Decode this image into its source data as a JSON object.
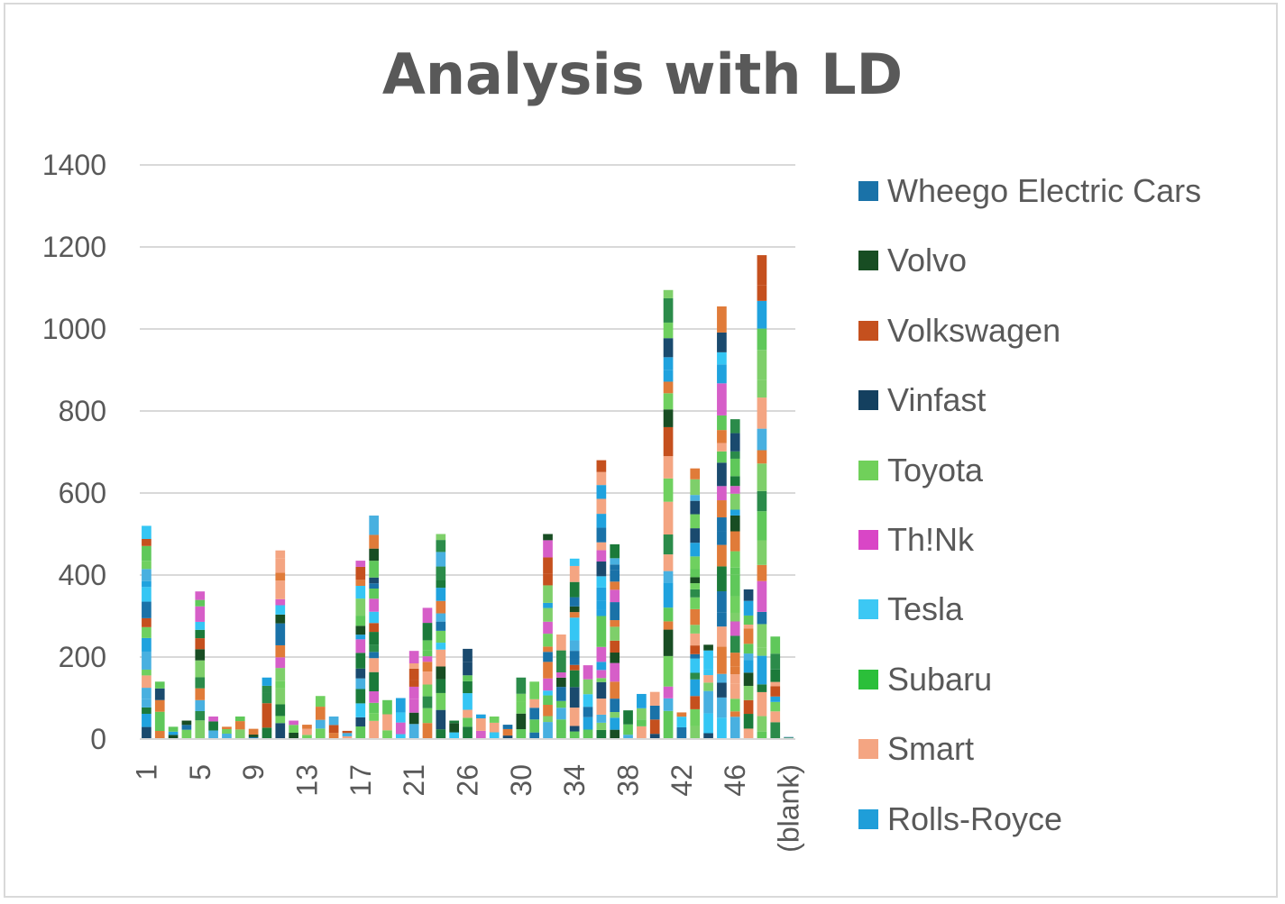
{
  "chart_data": {
    "type": "bar",
    "stacked": true,
    "title": "Analysis with LD",
    "xlabel": "",
    "ylabel": "",
    "ylim": [
      0,
      1400
    ],
    "y_ticks": [
      0,
      200,
      400,
      600,
      800,
      1000,
      1200,
      1400
    ],
    "grid": true,
    "legend_position": "right",
    "categories": [
      "1",
      "2",
      "3",
      "4",
      "5",
      "6",
      "7",
      "8",
      "9",
      "10",
      "11",
      "12",
      "13",
      "14",
      "15",
      "16",
      "17",
      "18",
      "19",
      "20",
      "21",
      "22",
      "23",
      "24",
      "26",
      "27",
      "28",
      "29",
      "30",
      "31",
      "32",
      "33",
      "34",
      "35",
      "36",
      "37",
      "38",
      "39",
      "40",
      "41",
      "42",
      "43",
      "44",
      "45",
      "46",
      "47",
      "48",
      "49",
      "(blank)"
    ],
    "x_tick_labels": [
      "1",
      "5",
      "9",
      "13",
      "17",
      "21",
      "26",
      "30",
      "34",
      "38",
      "42",
      "46",
      "(blank)"
    ],
    "totals": [
      520,
      140,
      30,
      45,
      360,
      55,
      30,
      55,
      25,
      150,
      460,
      45,
      35,
      105,
      55,
      20,
      435,
      545,
      95,
      100,
      215,
      320,
      500,
      45,
      220,
      60,
      55,
      35,
      150,
      140,
      500,
      255,
      440,
      180,
      680,
      475,
      70,
      110,
      115,
      1095,
      65,
      660,
      230,
      1055,
      780,
      365,
      1180,
      250,
      5
    ],
    "palette": [
      "#1b7a3a",
      "#f4a582",
      "#1fa2de",
      "#5fc85a",
      "#35c6f4",
      "#d65ec8",
      "#6fd05f",
      "#1a4a6e",
      "#c5501e",
      "#184d23",
      "#1a72a8",
      "#7ecf6a",
      "#2b8b4a",
      "#e07b39",
      "#48b0e0"
    ],
    "series": [
      {
        "name": "Rolls-Royce",
        "color": "#1f9ed9"
      },
      {
        "name": "Smart",
        "color": "#f4a582"
      },
      {
        "name": "Subaru",
        "color": "#2bbf3a"
      },
      {
        "name": "Tesla",
        "color": "#3cc8f4"
      },
      {
        "name": "Th!Nk",
        "color": "#d946c6"
      },
      {
        "name": "Toyota",
        "color": "#70d05a"
      },
      {
        "name": "Vinfast",
        "color": "#14405f"
      },
      {
        "name": "Volkswagen",
        "color": "#c5501e"
      },
      {
        "name": "Volvo",
        "color": "#184d23"
      },
      {
        "name": "Wheego Electric Cars",
        "color": "#1a72a8"
      }
    ]
  }
}
